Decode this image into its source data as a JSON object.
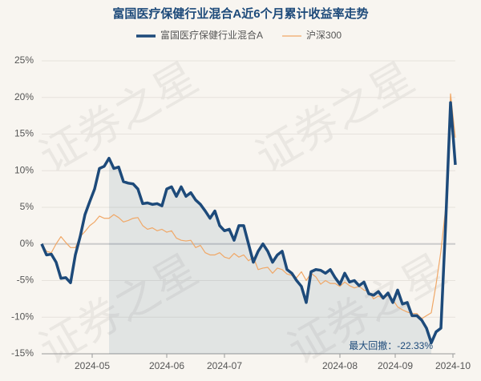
{
  "chart_data": {
    "type": "line",
    "title": "富国医疗保健行业混合A近6个月累计收益率走势",
    "annotation": "最大回撤：-22.33%",
    "watermark": "证券之星",
    "legend": "top",
    "grid": true,
    "x": [
      0,
      1,
      2,
      3,
      4,
      5,
      6,
      7,
      8,
      9,
      10,
      11,
      12,
      13,
      14,
      15,
      16,
      17,
      18,
      19,
      20,
      21,
      22,
      23,
      24,
      25,
      26,
      27,
      28,
      29,
      30,
      31,
      32,
      33,
      34,
      35,
      36,
      37,
      38,
      39,
      40,
      41,
      42,
      43,
      44,
      45,
      46,
      47,
      48,
      49,
      50,
      51,
      52,
      53,
      54,
      55,
      56,
      57,
      58,
      59,
      60,
      61,
      62,
      63,
      64,
      65,
      66,
      67,
      68,
      69,
      70,
      71,
      72,
      73,
      74,
      75,
      76,
      77,
      78,
      79,
      80,
      81,
      82,
      83,
      84,
      85,
      86
    ],
    "xlim": [
      0,
      86
    ],
    "xticks": [
      {
        "value": 10.5,
        "label": "2024-05"
      },
      {
        "value": 26,
        "label": "2024-06"
      },
      {
        "value": 38,
        "label": "2024-07"
      },
      {
        "value": 62,
        "label": "2024-08"
      },
      {
        "value": 73.5,
        "label": "2024-09"
      },
      {
        "value": 85.5,
        "label": "2024-10"
      }
    ],
    "ylim": [
      -15,
      25
    ],
    "yticks": [
      {
        "value": 25,
        "label": "25%"
      },
      {
        "value": 20,
        "label": "20%"
      },
      {
        "value": 15,
        "label": "15%"
      },
      {
        "value": 10,
        "label": "10%"
      },
      {
        "value": 5,
        "label": "5%"
      },
      {
        "value": 0,
        "label": "0%"
      },
      {
        "value": -5,
        "label": "-5%"
      },
      {
        "value": -10,
        "label": "-10%"
      },
      {
        "value": -15,
        "label": "-15%"
      }
    ],
    "series": [
      {
        "name": "富国医疗保健行业混合A",
        "color": "#1d4a7a",
        "width": 3.5,
        "values": [
          0,
          -1.5,
          -1.4,
          -2.5,
          -4.7,
          -4.6,
          -5.3,
          -1.5,
          1,
          4,
          5.8,
          7.5,
          10.3,
          10.6,
          11.7,
          10.3,
          10.5,
          8.5,
          8.3,
          8.2,
          7.5,
          5.5,
          5.6,
          5.4,
          5.5,
          5.2,
          7.5,
          7.8,
          6.5,
          7.8,
          6.5,
          7,
          6,
          5.4,
          4.5,
          3.5,
          4.5,
          2.5,
          1.8,
          2,
          0.5,
          2.5,
          2.5,
          0,
          -2.5,
          -1,
          0,
          -1,
          -2.5,
          -1.5,
          -1,
          -3.5,
          -4,
          -5,
          -5.8,
          -8,
          -3.8,
          -3.5,
          -3.6,
          -4,
          -3.5,
          -4.6,
          -5.5,
          -4,
          -5.2,
          -5,
          -5.7,
          -5.2,
          -6.8,
          -7,
          -6.5,
          -7.4,
          -6.7,
          -8,
          -6.3,
          -8.2,
          -8,
          -9.8,
          -9.8,
          -10.4,
          -11.5,
          -13.5,
          -12,
          -11.5,
          3,
          19.3,
          10.8
        ]
      },
      {
        "name": "沪深300",
        "color": "#f0a766",
        "width": 1.2,
        "values": [
          0,
          -1,
          -1.2,
          0,
          1,
          0.2,
          -0.5,
          -0.5,
          1,
          1.7,
          2.5,
          3,
          3.8,
          3.5,
          3.5,
          4,
          3.6,
          3,
          3.2,
          3.5,
          3.6,
          2.5,
          2,
          2.2,
          1.8,
          2,
          1.6,
          1.8,
          0.8,
          0.5,
          0.4,
          0.5,
          -0.5,
          -0.2,
          -1.2,
          -1.5,
          -1.5,
          -1.2,
          -1.8,
          -2,
          -1.3,
          -1.8,
          -1.5,
          -2.3,
          -1.8,
          -3.5,
          -3.3,
          -3.2,
          -4,
          -3.3,
          -3.5,
          -4.1,
          -4.3,
          -4.6,
          -3.8,
          -5,
          -4,
          -4.5,
          -5.5,
          -5,
          -5.4,
          -5.4,
          -5.8,
          -5.2,
          -5.7,
          -6,
          -5.8,
          -6.3,
          -6.5,
          -7.5,
          -7.1,
          -7.5,
          -7,
          -7.6,
          -8.6,
          -9,
          -9.3,
          -9.5,
          -9.5,
          -10.2,
          -9.8,
          -9.4,
          -5.5,
          -1,
          5,
          20.5,
          14.5
        ]
      }
    ]
  }
}
